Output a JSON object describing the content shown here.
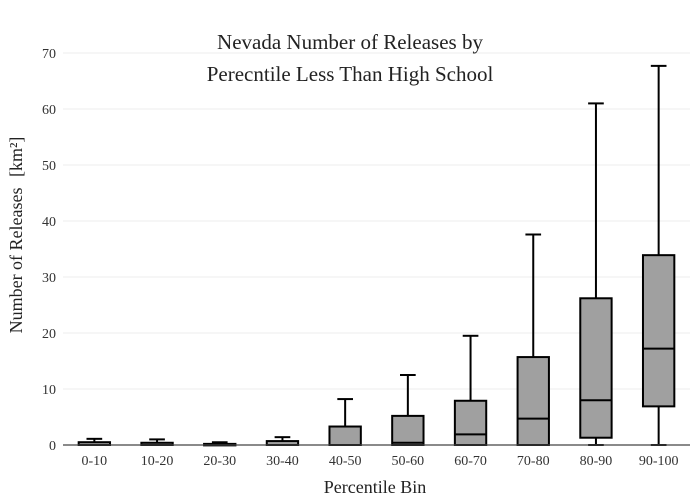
{
  "colors": {
    "box_fill": "#a0a0a0",
    "box_stroke": "#000000",
    "grid": "#eeeeee",
    "axis": "#444444",
    "text": "#222222"
  },
  "chart_data": {
    "type": "box",
    "title_lines": [
      "Nevada Number of Releases by",
      "Perecntile Less Than High School"
    ],
    "xlabel": "Percentile Bin",
    "ylabel": "Number of Releases",
    "ylabel_unit": "[km²]",
    "ylim": [
      0,
      70
    ],
    "yticks": [
      0,
      10,
      20,
      30,
      40,
      50,
      60,
      70
    ],
    "grid": true,
    "categories": [
      "0-10",
      "10-20",
      "20-30",
      "30-40",
      "40-50",
      "50-60",
      "60-70",
      "70-80",
      "80-90",
      "90-100"
    ],
    "boxes": [
      {
        "category": "0-10",
        "min": 0,
        "q1": 0,
        "median": 0,
        "q3": 0.5,
        "max": 1.1
      },
      {
        "category": "10-20",
        "min": 0,
        "q1": 0,
        "median": 0,
        "q3": 0.4,
        "max": 1.0
      },
      {
        "category": "20-30",
        "min": 0,
        "q1": 0,
        "median": 0,
        "q3": 0.2,
        "max": 0.5
      },
      {
        "category": "30-40",
        "min": 0,
        "q1": 0,
        "median": 0,
        "q3": 0.7,
        "max": 1.4
      },
      {
        "category": "40-50",
        "min": 0,
        "q1": 0,
        "median": 0,
        "q3": 3.3,
        "max": 8.2
      },
      {
        "category": "50-60",
        "min": 0,
        "q1": 0,
        "median": 0.4,
        "q3": 5.2,
        "max": 12.5
      },
      {
        "category": "60-70",
        "min": 0,
        "q1": 0,
        "median": 1.9,
        "q3": 7.9,
        "max": 19.5
      },
      {
        "category": "70-80",
        "min": 0,
        "q1": 0,
        "median": 4.7,
        "q3": 15.7,
        "max": 37.6
      },
      {
        "category": "80-90",
        "min": 0,
        "q1": 1.3,
        "median": 8.0,
        "q3": 26.2,
        "max": 61.0
      },
      {
        "category": "90-100",
        "min": 0,
        "q1": 6.9,
        "median": 17.2,
        "q3": 33.9,
        "max": 67.7
      }
    ]
  }
}
